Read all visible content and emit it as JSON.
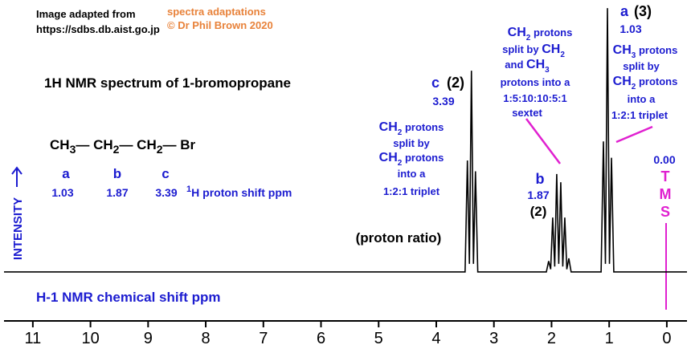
{
  "chart_data": {
    "type": "line",
    "title": "1H NMR spectrum of 1-bromopropane",
    "x_label": "H-1 NMR chemical shift  ppm",
    "y_label": "INTENSITY",
    "color": "#000000",
    "xlim": [
      11.5,
      -0.35
    ],
    "ylim": [
      -18,
      100
    ],
    "xticks": [
      11,
      10,
      9,
      8,
      7,
      6,
      5,
      4,
      3,
      2,
      1,
      0
    ],
    "x": [
      11.5,
      3.5,
      3.46,
      3.425,
      3.39,
      3.355,
      3.32,
      3.28,
      2.09,
      2.05,
      2.015,
      1.98,
      1.945,
      1.91,
      1.875,
      1.84,
      1.805,
      1.77,
      1.735,
      1.7,
      1.66,
      1.14,
      1.1,
      1.065,
      1.03,
      0.995,
      0.96,
      0.92,
      -0.35
    ],
    "values": [
      0,
      0,
      41,
      3,
      74,
      3,
      37,
      0,
      0,
      4,
      1,
      20,
      2,
      36,
      3,
      33,
      2,
      20,
      1,
      5,
      0,
      0,
      48,
      3,
      97,
      3,
      42,
      0,
      0
    ],
    "annotations": [
      {
        "runs": [
          {
            "t": "Image adapted from"
          }
        ]
      },
      {
        "runs": [
          {
            "t": "https://sdbs.db.aist.go.jp"
          }
        ]
      },
      {
        "runs": [
          {
            "t": "spectra adaptations"
          }
        ]
      },
      {
        "runs": [
          {
            "t": "© Dr Phil Brown 2020"
          }
        ]
      },
      {
        "runs": [
          {
            "t": "CH"
          },
          {
            "sub": "3"
          },
          {
            "t": "— CH"
          },
          {
            "sub": "2"
          },
          {
            "t": "— CH"
          },
          {
            "sub": "2"
          },
          {
            "t": "— Br"
          }
        ]
      },
      {
        "runs": [
          {
            "t": "a"
          }
        ]
      },
      {
        "runs": [
          {
            "t": "b"
          }
        ]
      },
      {
        "runs": [
          {
            "t": "c"
          }
        ]
      },
      {
        "runs": [
          {
            "t": "1.03"
          }
        ]
      },
      {
        "runs": [
          {
            "t": "1.87"
          }
        ]
      },
      {
        "runs": [
          {
            "t": "3.39"
          }
        ]
      },
      {
        "runs": [
          {
            "sup": "1"
          },
          {
            "t": "H"
          },
          {
            "t": "  proton shift  ppm"
          }
        ]
      },
      {
        "runs": [
          {
            "t": "c"
          }
        ]
      },
      {
        "runs": [
          {
            "t": "(2)"
          }
        ]
      },
      {
        "runs": [
          {
            "t": "3.39"
          }
        ]
      },
      {
        "runs": [
          {
            "t": "CH"
          },
          {
            "sub": "2"
          },
          {
            "t": " protons"
          }
        ]
      },
      {
        "runs": [
          {
            "t": "split by"
          }
        ]
      },
      {
        "runs": [
          {
            "t": "CH"
          },
          {
            "sub": "2"
          },
          {
            "t": " protons"
          }
        ]
      },
      {
        "runs": [
          {
            "t": "into a"
          }
        ]
      },
      {
        "runs": [
          {
            "t": "1:2:1 triplet"
          }
        ]
      },
      {
        "runs": [
          {
            "t": "b"
          }
        ]
      },
      {
        "runs": [
          {
            "t": "1.87"
          }
        ]
      },
      {
        "runs": [
          {
            "t": "(2)"
          }
        ]
      },
      {
        "runs": [
          {
            "t": "CH"
          },
          {
            "sub": "2"
          },
          {
            "t": " protons"
          }
        ]
      },
      {
        "runs": [
          {
            "t": "split by "
          },
          {
            "t": "CH"
          },
          {
            "sub": "2"
          }
        ]
      },
      {
        "runs": [
          {
            "t": "and "
          },
          {
            "t": "CH"
          },
          {
            "sub": "3"
          }
        ]
      },
      {
        "runs": [
          {
            "t": "protons into a"
          }
        ]
      },
      {
        "runs": [
          {
            "t": "1:5:10:10:5:1"
          }
        ]
      },
      {
        "runs": [
          {
            "t": "sextet"
          }
        ]
      },
      {
        "runs": [
          {
            "t": "a"
          }
        ]
      },
      {
        "runs": [
          {
            "t": "(3)"
          }
        ]
      },
      {
        "runs": [
          {
            "t": "1.03"
          }
        ]
      },
      {
        "runs": [
          {
            "t": "CH"
          },
          {
            "sub": "3"
          },
          {
            "t": " protons"
          }
        ]
      },
      {
        "runs": [
          {
            "t": "split by"
          }
        ]
      },
      {
        "runs": [
          {
            "t": "CH"
          },
          {
            "sub": "2"
          },
          {
            "t": " protons"
          }
        ]
      },
      {
        "runs": [
          {
            "t": "into a"
          }
        ]
      },
      {
        "runs": [
          {
            "t": "1:2:1 triplet"
          }
        ]
      },
      {
        "runs": [
          {
            "t": "0.00"
          }
        ]
      },
      {
        "runs": [
          {
            "t": "T"
          }
        ]
      },
      {
        "runs": [
          {
            "t": "M"
          }
        ]
      },
      {
        "runs": [
          {
            "t": "S"
          }
        ]
      },
      {
        "runs": [
          {
            "t": "(proton ratio)"
          }
        ]
      }
    ]
  }
}
